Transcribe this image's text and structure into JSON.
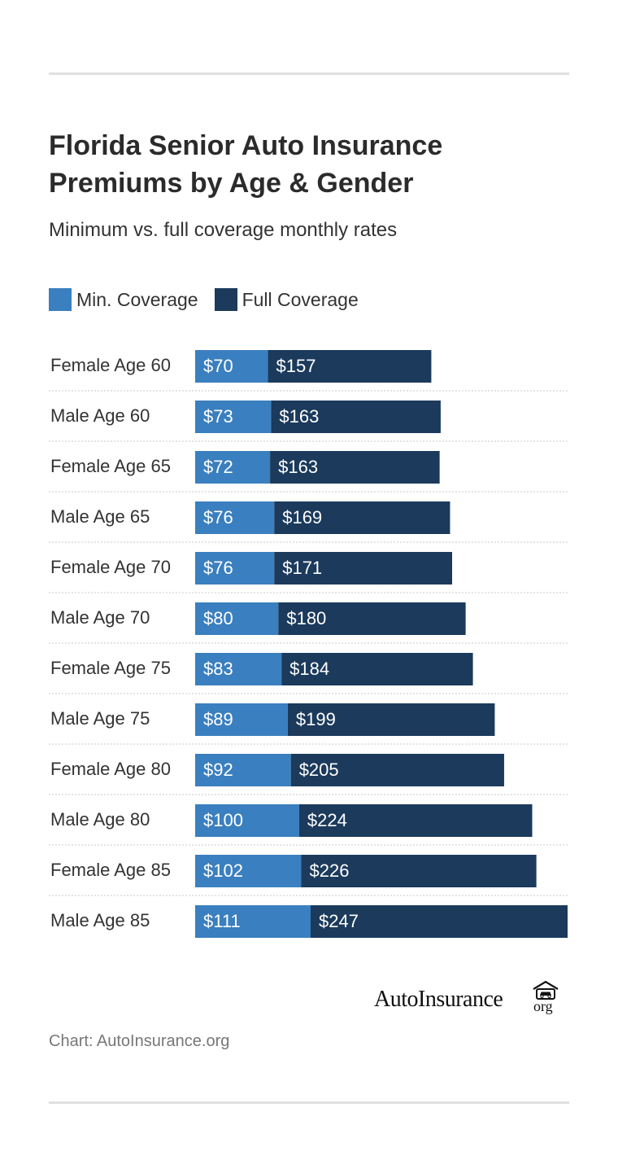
{
  "header": {
    "title": "Florida Senior Auto Insurance Premiums by Age & Gender",
    "subtitle": "Minimum vs. full coverage monthly rates"
  },
  "legend": [
    {
      "label": "Min. Coverage",
      "color": "#3a7fbf"
    },
    {
      "label": "Full Coverage",
      "color": "#1b3a5c"
    }
  ],
  "chart_data": {
    "type": "bar",
    "orientation": "horizontal",
    "stacked": true,
    "categories": [
      "Female Age 60",
      "Male Age 60",
      "Female Age 65",
      "Male Age 65",
      "Female Age 70",
      "Male Age 70",
      "Female Age 75",
      "Male Age 75",
      "Female Age 80",
      "Male Age 80",
      "Female Age 85",
      "Male Age 85"
    ],
    "series": [
      {
        "name": "Min. Coverage",
        "color": "#3a7fbf",
        "values": [
          70,
          73,
          72,
          76,
          76,
          80,
          83,
          89,
          92,
          100,
          102,
          111
        ]
      },
      {
        "name": "Full Coverage",
        "color": "#1b3a5c",
        "values": [
          157,
          163,
          163,
          169,
          171,
          180,
          184,
          199,
          205,
          224,
          226,
          247
        ]
      }
    ],
    "value_prefix": "$",
    "xlim": [
      0,
      358
    ],
    "grid": false,
    "legend_position": "top-left"
  },
  "branding": {
    "logo_main": "AutoInsurance",
    "logo_suffix": "org",
    "logo_icon": "car-garage-icon"
  },
  "source": "Chart: AutoInsurance.org"
}
